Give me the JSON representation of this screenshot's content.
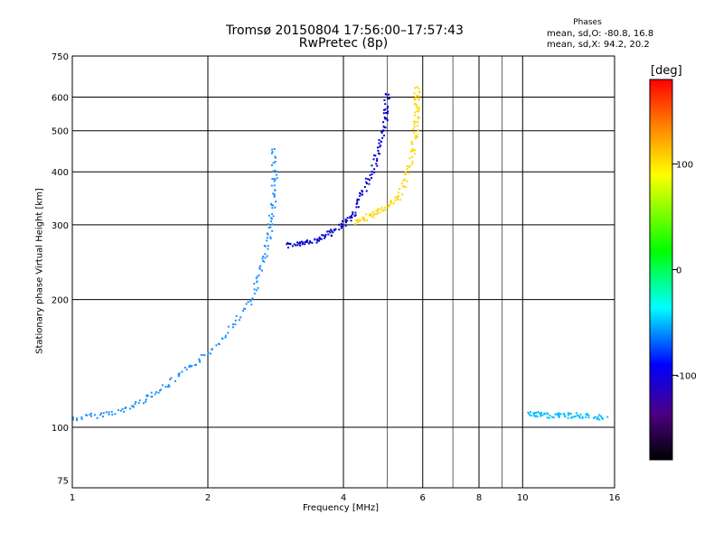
{
  "title": "Tromsø 20150804 17:56:00–17:57:43",
  "subtitle": "RwPretec (8p)",
  "phases": {
    "heading": "Phases",
    "o_stats": "mean, sd,O: -80.8, 16.8",
    "x_stats": "mean, sd,X:  94.2, 20.2"
  },
  "chart_data": {
    "type": "scatter",
    "xlabel": "Frequency [MHz]",
    "ylabel": "Stationary phase Virtual Height [km]",
    "xscale": "log",
    "yscale": "log",
    "xlim": [
      1,
      16
    ],
    "ylim": [
      72,
      750
    ],
    "xticks": [
      1,
      2,
      4,
      6,
      8,
      10,
      16
    ],
    "yticks": [
      75,
      100,
      200,
      300,
      400,
      500,
      600,
      750
    ],
    "x_major_grid": [
      2,
      4,
      6,
      8,
      10
    ],
    "x_minor_grid": [
      5,
      7,
      9
    ],
    "y_grid": [
      100,
      200,
      300,
      400,
      500,
      600
    ],
    "colorbar": {
      "label": "[deg]",
      "range": [
        -180,
        180
      ],
      "ticks": [
        100,
        0,
        -100
      ],
      "colors": [
        "#000000",
        "#4b0082",
        "#0000ff",
        "#00ffff",
        "#00ff00",
        "#ffff00",
        "#ff8000",
        "#ff0000"
      ]
    },
    "series": [
      {
        "points": [
          [
            1.0,
            105
          ],
          [
            1.3,
            110
          ],
          [
            1.6,
            125
          ],
          [
            2.0,
            150
          ],
          [
            2.5,
            200
          ],
          [
            2.7,
            270
          ],
          [
            2.8,
            350
          ],
          [
            2.8,
            460
          ]
        ]
      },
      {
        "points": [
          [
            3.0,
            270
          ],
          [
            3.4,
            275
          ],
          [
            3.8,
            290
          ],
          [
            4.2,
            320
          ],
          [
            4.6,
            400
          ],
          [
            4.9,
            500
          ],
          [
            5.0,
            620
          ]
        ]
      },
      {
        "points": [
          [
            4.2,
            305
          ],
          [
            4.7,
            320
          ],
          [
            5.3,
            350
          ],
          [
            5.7,
            450
          ],
          [
            5.8,
            550
          ],
          [
            5.8,
            640
          ]
        ]
      },
      {
        "points": [
          [
            10.2,
            108
          ],
          [
            11.5,
            107
          ],
          [
            13.0,
            107
          ],
          [
            15.3,
            106
          ]
        ]
      }
    ]
  }
}
